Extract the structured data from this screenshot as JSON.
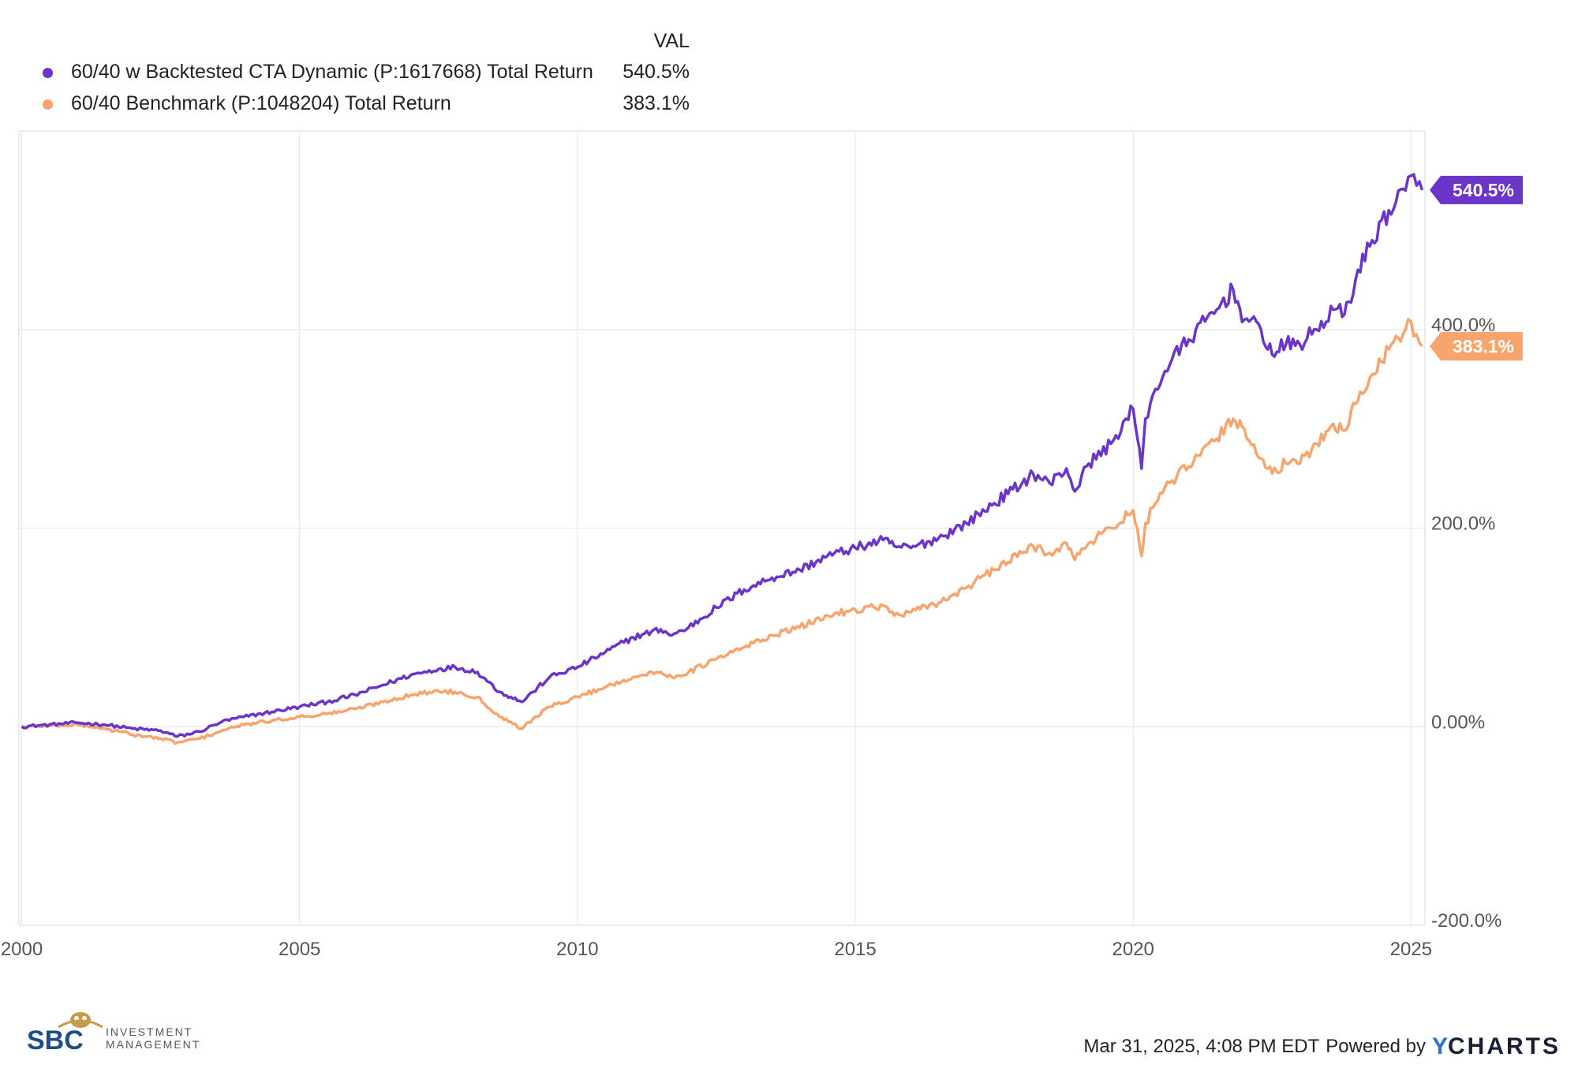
{
  "legend": {
    "header": "VAL",
    "items": [
      {
        "name": "60/40 w Backtested CTA Dynamic (P:1617668) Total Return",
        "value": "540.5%",
        "color": "#6a35c8"
      },
      {
        "name": "60/40 Benchmark (P:1048204) Total Return",
        "value": "383.1%",
        "color": "#f7a46d"
      }
    ]
  },
  "chart_data": {
    "type": "line",
    "title": "",
    "xlabel": "",
    "ylabel": "",
    "xlim": [
      1999.95,
      2025.25
    ],
    "ylim": [
      -200,
      600
    ],
    "x_ticks": [
      2000,
      2005,
      2010,
      2015,
      2020,
      2025
    ],
    "x_tick_labels": [
      "2000",
      "2005",
      "2010",
      "2015",
      "2020",
      "2025"
    ],
    "y_ticks": [
      -200,
      0,
      200,
      400
    ],
    "y_tick_labels": [
      "-200.0%",
      "0.00%",
      "200.0%",
      "400.0%"
    ],
    "grid": true,
    "series": [
      {
        "name": "60/40 w Backtested CTA Dynamic (P:1617668) Total Return",
        "color": "#6a35c8",
        "end_label": "540.5%",
        "x": [
          2000.0,
          2000.5,
          2001.0,
          2001.5,
          2002.0,
          2002.5,
          2002.8,
          2003.2,
          2003.6,
          2004.0,
          2004.5,
          2005.0,
          2005.5,
          2006.0,
          2006.5,
          2007.0,
          2007.5,
          2007.8,
          2008.2,
          2008.6,
          2008.8,
          2009.0,
          2009.2,
          2009.5,
          2010.0,
          2010.5,
          2011.0,
          2011.5,
          2011.7,
          2012.0,
          2012.5,
          2013.0,
          2013.5,
          2014.0,
          2014.5,
          2015.0,
          2015.5,
          2015.7,
          2016.0,
          2016.5,
          2017.0,
          2017.5,
          2018.0,
          2018.2,
          2018.5,
          2018.8,
          2018.95,
          2019.2,
          2019.6,
          2020.0,
          2020.15,
          2020.22,
          2020.4,
          2020.7,
          2021.0,
          2021.5,
          2021.8,
          2022.0,
          2022.3,
          2022.5,
          2022.75,
          2023.0,
          2023.3,
          2023.6,
          2023.8,
          2024.0,
          2024.3,
          2024.6,
          2024.9,
          2025.0,
          2025.1,
          2025.2
        ],
        "values": [
          0,
          2,
          4,
          2,
          -2,
          -4,
          -10,
          -5,
          5,
          10,
          15,
          20,
          25,
          32,
          42,
          52,
          58,
          60,
          55,
          35,
          30,
          25,
          35,
          50,
          60,
          75,
          90,
          98,
          92,
          100,
          120,
          138,
          150,
          158,
          172,
          180,
          188,
          182,
          180,
          190,
          205,
          225,
          245,
          255,
          245,
          260,
          237,
          265,
          285,
          320,
          260,
          310,
          340,
          370,
          390,
          420,
          440,
          410,
          400,
          375,
          385,
          385,
          400,
          420,
          415,
          450,
          490,
          520,
          540,
          555,
          545,
          540.5
        ]
      },
      {
        "name": "60/40 Benchmark (P:1048204) Total Return",
        "color": "#f7a46d",
        "end_label": "383.1%",
        "x": [
          2000.0,
          2000.5,
          2001.0,
          2001.5,
          2002.0,
          2002.5,
          2002.8,
          2003.2,
          2003.6,
          2004.0,
          2004.5,
          2005.0,
          2005.5,
          2006.0,
          2006.5,
          2007.0,
          2007.5,
          2007.8,
          2008.2,
          2008.6,
          2008.8,
          2009.0,
          2009.2,
          2009.5,
          2010.0,
          2010.5,
          2011.0,
          2011.5,
          2011.7,
          2012.0,
          2012.5,
          2013.0,
          2013.5,
          2014.0,
          2014.5,
          2015.0,
          2015.5,
          2015.7,
          2016.0,
          2016.5,
          2017.0,
          2017.5,
          2018.0,
          2018.2,
          2018.5,
          2018.8,
          2018.95,
          2019.2,
          2019.6,
          2020.0,
          2020.15,
          2020.22,
          2020.4,
          2020.7,
          2021.0,
          2021.5,
          2021.8,
          2022.0,
          2022.3,
          2022.5,
          2022.75,
          2023.0,
          2023.3,
          2023.6,
          2023.8,
          2024.0,
          2024.3,
          2024.6,
          2024.9,
          2025.0,
          2025.1,
          2025.2
        ],
        "values": [
          0,
          1,
          2,
          -2,
          -8,
          -12,
          -16,
          -12,
          -4,
          2,
          6,
          10,
          13,
          18,
          25,
          32,
          36,
          35,
          30,
          10,
          5,
          -2,
          8,
          20,
          30,
          40,
          50,
          55,
          50,
          55,
          68,
          80,
          92,
          100,
          112,
          118,
          122,
          112,
          115,
          125,
          140,
          158,
          175,
          182,
          175,
          185,
          168,
          185,
          200,
          218,
          172,
          205,
          225,
          248,
          262,
          290,
          310,
          300,
          270,
          255,
          265,
          265,
          285,
          305,
          298,
          325,
          355,
          380,
          400,
          408,
          395,
          383.1
        ]
      }
    ]
  },
  "footer": {
    "timestamp": "Mar 31, 2025, 4:08 PM EDT",
    "powered_by": "Powered by",
    "brand_y": "Y",
    "brand_rest": "CHARTS"
  },
  "logo": {
    "letters": "SBC",
    "line1": "INVESTMENT",
    "line2": "MANAGEMENT"
  }
}
